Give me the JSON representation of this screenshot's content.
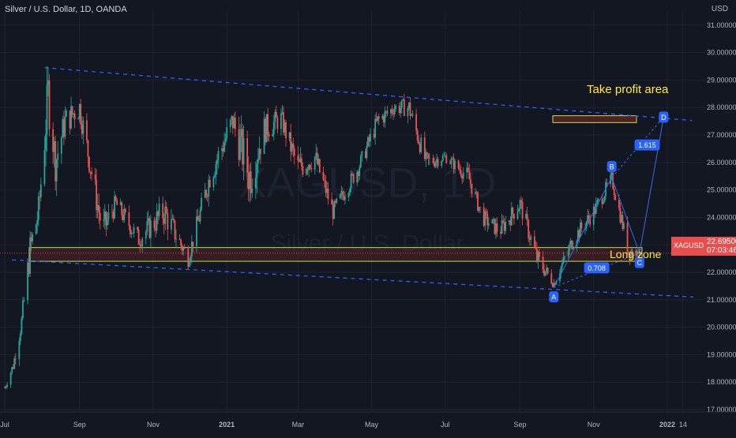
{
  "header": {
    "title": "Silver / U.S. Dollar, 1D, OANDA",
    "currency": "USD"
  },
  "watermark": {
    "symbol": "XAGUSD, 1D",
    "name": "Silver / U.S. Dollar"
  },
  "price_tag": {
    "symbol": "XAGUSD",
    "price": "22.69500",
    "countdown": "07:03:46"
  },
  "colors": {
    "up": "#26a69a",
    "down": "#ef5350",
    "trend": "#2962ff",
    "zone": "#c6e04a",
    "label_text": "#ffeb3b",
    "bg": "#131722"
  },
  "annotations": {
    "take_profit": "Take profit area",
    "long_zone": "Long zone"
  },
  "pattern": {
    "points": [
      {
        "label": "A",
        "date": "2021-09-29",
        "price": 21.45
      },
      {
        "label": "B",
        "date": "2021-11-16",
        "price": 25.45
      },
      {
        "label": "C",
        "date": "2021-12-09",
        "price": 22.7
      },
      {
        "label": "D",
        "date": "2021-12-29",
        "price": 27.65
      }
    ],
    "ratios": [
      "0.708",
      "1.615"
    ]
  },
  "chart_data": {
    "type": "candlestick",
    "title": "Silver / U.S. Dollar, 1D, OANDA",
    "ylabel": "USD",
    "ylim": [
      16.5,
      31.5
    ],
    "xlim": [
      "2020-07-01",
      "2022-01-20"
    ],
    "x_ticks": [
      "Jul",
      "Sep",
      "Nov",
      "2021",
      "Mar",
      "May",
      "Jul",
      "Sep",
      "Nov",
      "2022",
      "14"
    ],
    "y_ticks": [
      "17.00000",
      "18.00000",
      "19.00000",
      "20.00000",
      "21.00000",
      "22.00000",
      "23.00000",
      "24.00000",
      "25.00000",
      "26.00000",
      "27.00000",
      "28.00000",
      "29.00000",
      "30.00000",
      "31.00000"
    ],
    "grid": true,
    "series": [
      {
        "dates": [
          "2020-07-01",
          "2020-07-08",
          "2020-07-15",
          "2020-07-22",
          "2020-07-29",
          "2020-08-06",
          "2020-08-12",
          "2020-08-20",
          "2020-09-01",
          "2020-09-20",
          "2020-10-01",
          "2020-10-20",
          "2020-11-10",
          "2020-11-30",
          "2020-12-18",
          "2021-01-06",
          "2021-01-20",
          "2021-02-01",
          "2021-02-15",
          "2021-03-01",
          "2021-03-15",
          "2021-03-30",
          "2021-04-20",
          "2021-05-06",
          "2021-05-20",
          "2021-06-01",
          "2021-06-15",
          "2021-07-01",
          "2021-07-20",
          "2021-08-01",
          "2021-08-15",
          "2021-09-01",
          "2021-09-15",
          "2021-09-29",
          "2021-10-15",
          "2021-11-01",
          "2021-11-16",
          "2021-11-30",
          "2021-12-09"
        ],
        "close": [
          17.8,
          18.6,
          20.2,
          22.8,
          24.2,
          28.5,
          26.0,
          27.5,
          28.0,
          23.5,
          24.5,
          23.2,
          24.2,
          22.5,
          25.5,
          27.5,
          25.5,
          27.2,
          27.6,
          25.8,
          26.2,
          24.2,
          25.8,
          27.5,
          28.0,
          28.0,
          26.0,
          26.2,
          25.5,
          24.0,
          23.5,
          24.5,
          22.5,
          21.6,
          23.2,
          24.2,
          25.4,
          22.8,
          22.7
        ],
        "high": [
          18.0,
          19.0,
          20.5,
          23.5,
          26.0,
          29.5,
          28.5,
          28.5,
          28.8,
          25.0,
          25.2,
          24.6,
          25.2,
          24.0,
          26.2,
          28.0,
          30.1,
          28.5,
          28.4,
          27.5,
          26.7,
          25.6,
          26.5,
          28.2,
          28.6,
          28.5,
          27.8,
          26.6,
          26.6,
          25.5,
          24.6,
          24.8,
          24.0,
          22.5,
          23.6,
          25.0,
          25.5,
          24.3,
          23.0
        ],
        "low": [
          17.5,
          17.8,
          18.4,
          20.0,
          22.5,
          24.0,
          24.5,
          25.5,
          26.0,
          21.7,
          23.2,
          22.6,
          21.9,
          22.3,
          23.4,
          24.7,
          24.6,
          25.5,
          26.3,
          24.5,
          24.3,
          23.8,
          24.8,
          26.2,
          27.1,
          26.5,
          25.7,
          25.5,
          24.8,
          23.8,
          22.8,
          22.9,
          21.8,
          21.4,
          21.9,
          23.3,
          24.0,
          22.4,
          22.5
        ]
      }
    ],
    "support_zone": [
      22.45,
      22.65
    ],
    "target_zone": [
      27.45,
      27.7
    ],
    "trendlines": [
      {
        "from": [
          "2020-08-03",
          29.45
        ],
        "to": [
          "2022-01-01",
          27.6
        ]
      },
      {
        "from": [
          "2020-07-07",
          22.45
        ],
        "to": [
          "2022-01-01",
          21.15
        ]
      }
    ]
  }
}
